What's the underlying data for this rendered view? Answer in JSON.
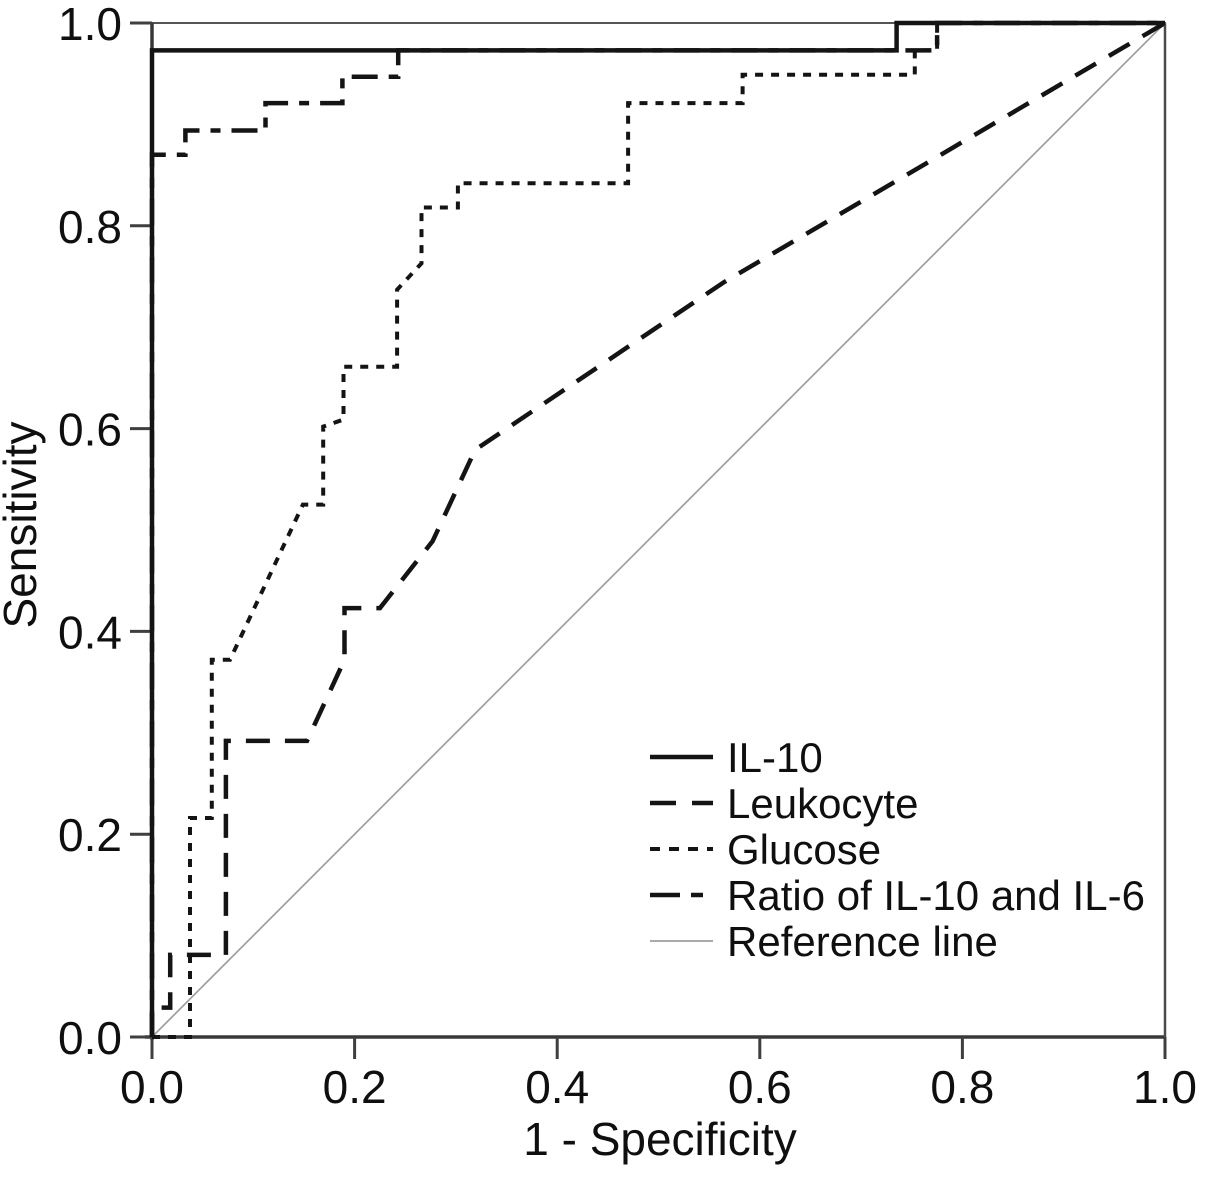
{
  "chart_data": {
    "type": "line",
    "subtype": "roc-curve",
    "title": "",
    "xlabel": "1 - Specificity",
    "ylabel": "Sensitivity",
    "xlim": [
      0,
      1
    ],
    "ylim": [
      0,
      1
    ],
    "grid": false,
    "x_tick_values": [
      0.0,
      0.2,
      0.4,
      0.6,
      0.8,
      1.0
    ],
    "x_tick_labels": [
      "0.0",
      "0.2",
      "0.4",
      "0.6",
      "0.8",
      "1.0"
    ],
    "y_tick_values": [
      0.0,
      0.2,
      0.4,
      0.6,
      0.8,
      1.0
    ],
    "y_tick_labels": [
      "0.0",
      "0.2",
      "0.4",
      "0.6",
      "0.8",
      "1.0"
    ],
    "legend": {
      "position": "lower-right-inside",
      "entries": [
        "IL-10",
        "Leukocyte",
        "Glucose",
        "Ratio of IL-10 and IL-6",
        "Reference line"
      ]
    },
    "colors": {
      "curve": "#141414",
      "reference": "#9e9e9e",
      "axis": "#3f3f3f",
      "text": "#0f0f0f",
      "background": "#ffffff"
    },
    "series": [
      {
        "name": "IL-10",
        "style": "solid",
        "color": "#141414",
        "width": 4.5,
        "z": 5,
        "points": [
          [
            0,
            0
          ],
          [
            0,
            0.973
          ],
          [
            0.735,
            0.973
          ],
          [
            0.735,
            1
          ],
          [
            1,
            1
          ]
        ]
      },
      {
        "name": "Leukocyte",
        "style": "long-dash",
        "color": "#141414",
        "width": 4.5,
        "z": 3,
        "points": [
          [
            0,
            0
          ],
          [
            0,
            0.029
          ],
          [
            0.018,
            0.029
          ],
          [
            0.018,
            0.081
          ],
          [
            0.073,
            0.081
          ],
          [
            0.073,
            0.292
          ],
          [
            0.153,
            0.292
          ],
          [
            0.19,
            0.372
          ],
          [
            0.19,
            0.423
          ],
          [
            0.225,
            0.423
          ],
          [
            0.277,
            0.489
          ],
          [
            0.319,
            0.579
          ],
          [
            0.564,
            0.744
          ],
          [
            1,
            1
          ]
        ]
      },
      {
        "name": "Glucose",
        "style": "short-dash",
        "color": "#141414",
        "width": 4,
        "z": 2,
        "points": [
          [
            0,
            0
          ],
          [
            0.0375,
            0
          ],
          [
            0.0375,
            0.216
          ],
          [
            0.059,
            0.216
          ],
          [
            0.059,
            0.372
          ],
          [
            0.077,
            0.372
          ],
          [
            0.149,
            0.525
          ],
          [
            0.169,
            0.525
          ],
          [
            0.169,
            0.602
          ],
          [
            0.189,
            0.609
          ],
          [
            0.189,
            0.661
          ],
          [
            0.242,
            0.661
          ],
          [
            0.242,
            0.737
          ],
          [
            0.266,
            0.763
          ],
          [
            0.266,
            0.818
          ],
          [
            0.302,
            0.818
          ],
          [
            0.302,
            0.842
          ],
          [
            0.47,
            0.842
          ],
          [
            0.47,
            0.921
          ],
          [
            0.583,
            0.921
          ],
          [
            0.583,
            0.949
          ],
          [
            0.753,
            0.949
          ],
          [
            0.753,
            0.973
          ],
          [
            0.775,
            0.973
          ],
          [
            0.775,
            1
          ],
          [
            1,
            1
          ]
        ]
      },
      {
        "name": "Ratio of IL-10 and IL-6",
        "style": "dash-dot",
        "color": "#141414",
        "width": 4.5,
        "z": 4,
        "points": [
          [
            0,
            0
          ],
          [
            0,
            0.87
          ],
          [
            0.033,
            0.87
          ],
          [
            0.033,
            0.894
          ],
          [
            0.112,
            0.894
          ],
          [
            0.112,
            0.921
          ],
          [
            0.188,
            0.921
          ],
          [
            0.188,
            0.947
          ],
          [
            0.243,
            0.947
          ],
          [
            0.243,
            0.973
          ],
          [
            0.775,
            0.973
          ],
          [
            0.775,
            1
          ],
          [
            1,
            1
          ]
        ]
      },
      {
        "name": "Reference line",
        "style": "thin-solid",
        "color": "#9e9e9e",
        "width": 1.7,
        "z": 1,
        "points": [
          [
            0,
            0
          ],
          [
            1,
            1
          ]
        ]
      }
    ]
  }
}
